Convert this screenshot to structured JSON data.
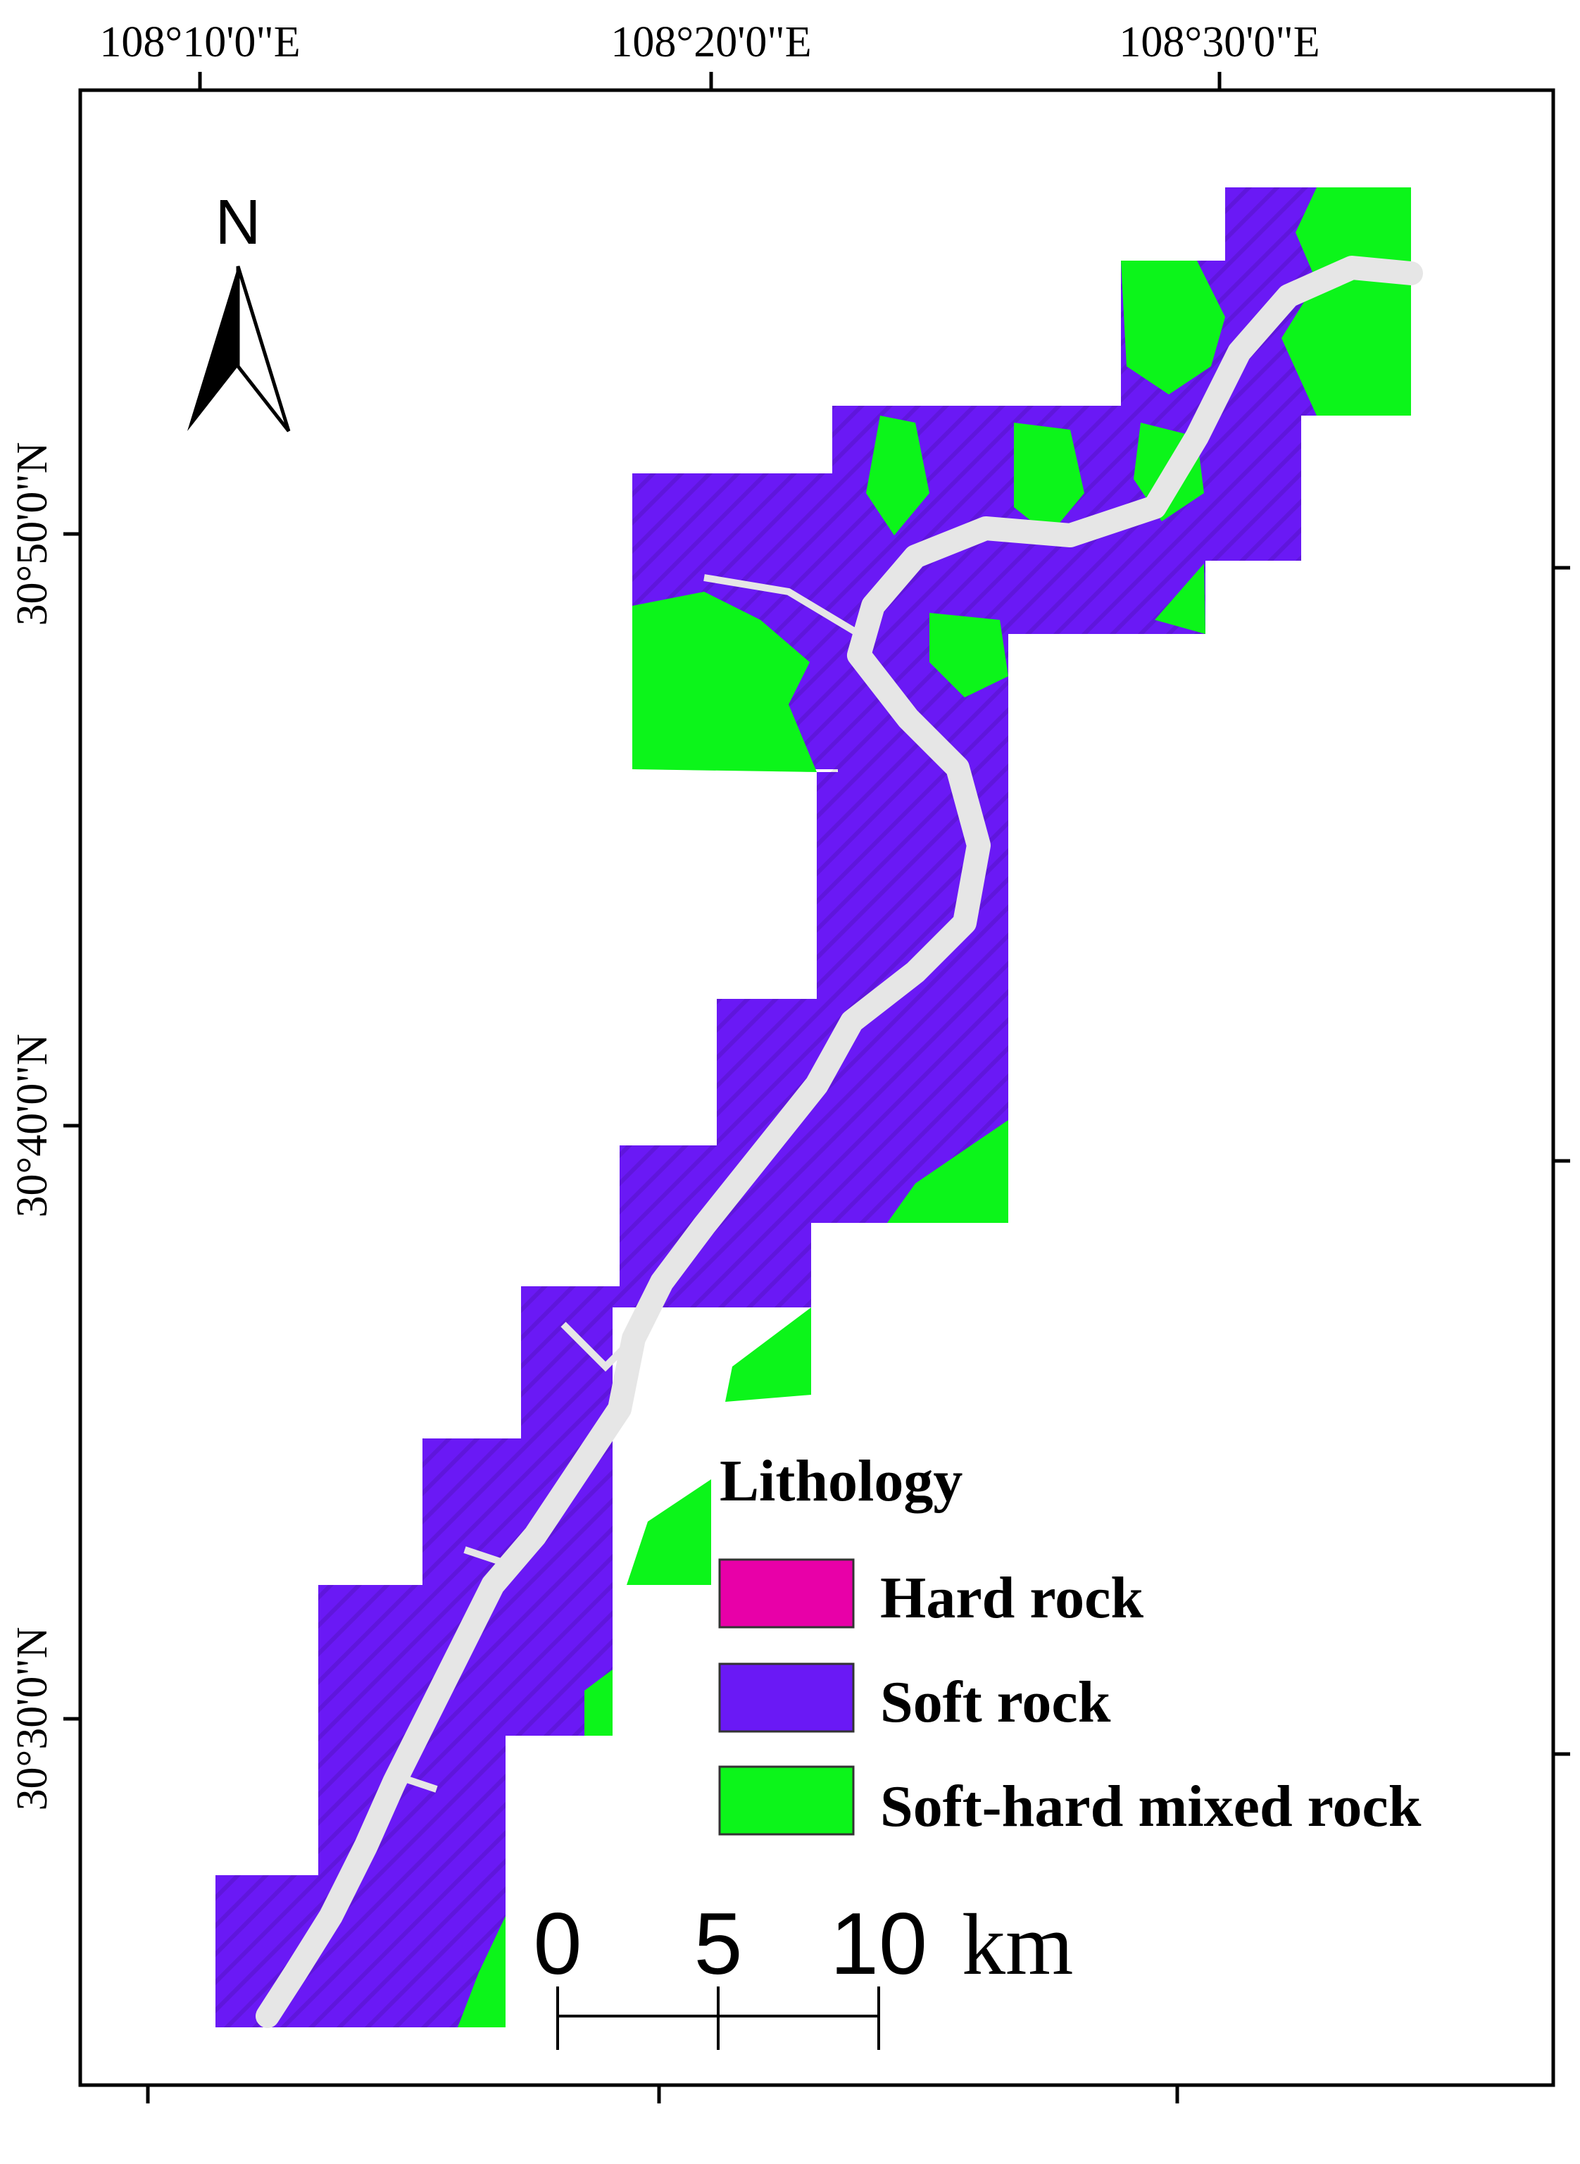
{
  "map": {
    "top_longitude_labels": [
      "108°10'0\"E",
      "108°20'0\"E",
      "108°30'0\"E"
    ],
    "left_latitude_labels": [
      "30°50'0\"N",
      "30°40'0\"N",
      "30°30'0\"N"
    ]
  },
  "north_arrow": {
    "letter": "N",
    "icon": "north-arrow-icon"
  },
  "legend": {
    "title": "Lithology",
    "items": [
      {
        "label": "Hard rock",
        "color": "#e800a8"
      },
      {
        "label": "Soft rock",
        "color": "#6a19f5"
      },
      {
        "label": "Soft-hard mixed rock",
        "color": "#0cf51a"
      }
    ]
  },
  "scale_bar": {
    "ticks": [
      "0",
      "5",
      "10"
    ],
    "unit": "km"
  },
  "colors": {
    "soft_rock": "#6a19f5",
    "mixed_rock": "#0cf51a",
    "river": "#e6e6e6",
    "frame": "#000000"
  }
}
